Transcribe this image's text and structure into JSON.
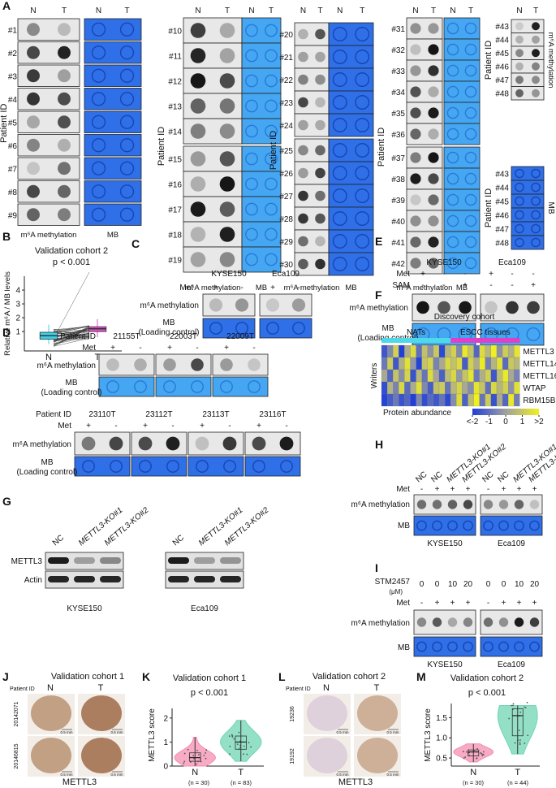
{
  "A": {
    "label": "A",
    "col_n": "N",
    "col_t": "T",
    "patient_id": "Patient ID",
    "m6a": "m⁶A methylation",
    "mb": "MB",
    "groups": [
      [
        "#1",
        "#2",
        "#3",
        "#4",
        "#5",
        "#6",
        "#7",
        "#8",
        "#9"
      ],
      [
        "#10",
        "#11",
        "#12",
        "#13",
        "#14",
        "#15",
        "#16",
        "#17",
        "#18",
        "#19"
      ],
      [
        "#20",
        "#21",
        "#22",
        "#23",
        "#24",
        "#25",
        "#26",
        "#27",
        "#28",
        "#29",
        "#30"
      ],
      [
        "#31",
        "#32",
        "#33",
        "#34",
        "#35",
        "#36",
        "#37",
        "#38",
        "#39",
        "#40",
        "#41",
        "#42"
      ],
      [
        "#43",
        "#44",
        "#45",
        "#46",
        "#47",
        "#48"
      ]
    ]
  },
  "B": {
    "label": "B",
    "type": "box",
    "title": "Validation cohort 2",
    "p": "p < 0.001",
    "ylabel": "Relative m⁶A / MB levels",
    "categories": [
      "N",
      "T"
    ],
    "colors": [
      "#3fd0e8",
      "#e050c8"
    ],
    "ylim": [
      -0.4,
      5
    ],
    "yticks": [
      1,
      2,
      3,
      4
    ],
    "box": [
      {
        "min": 0.1,
        "q1": 0.45,
        "median": 0.7,
        "q3": 0.95,
        "max": 1.5
      },
      {
        "min": 0.6,
        "q1": 1.0,
        "median": 1.2,
        "q3": 1.35,
        "max": 1.9
      }
    ]
  },
  "C": {
    "label": "C",
    "cells": [
      "KYSE150",
      "Eca109"
    ],
    "met_label": "Met",
    "met": [
      "+",
      "-",
      "+",
      "-"
    ],
    "row_m6a": "m⁶A methylation",
    "row_mb": [
      "MB",
      "(Loading control)"
    ]
  },
  "D": {
    "label": "D",
    "patient_id": "Patient ID",
    "met_label": "Met",
    "row_m6a": "m⁶A methylation",
    "row_mb": [
      "MB",
      "(Loading control)"
    ],
    "ids1": [
      "21155T",
      "22003T",
      "22009T"
    ],
    "met1": [
      "+",
      "-",
      "+",
      "-",
      "+",
      "-"
    ],
    "ids2": [
      "23110T",
      "23112T",
      "23113T",
      "23116T"
    ],
    "met2": [
      "+",
      "-",
      "+",
      "-",
      "+",
      "-",
      "+",
      "-"
    ]
  },
  "E": {
    "label": "E",
    "cells": [
      "KYSE150",
      "Eca109"
    ],
    "met_label": "Met",
    "sam_label": "SAM",
    "met": [
      "+",
      "-",
      "-",
      "+",
      "-",
      "-"
    ],
    "sam": [
      "-",
      "-",
      "+",
      "-",
      "-",
      "+"
    ],
    "row_m6a": "m⁶A methylation",
    "row_mb": [
      "MB",
      "(Loading control)"
    ]
  },
  "F": {
    "label": "F",
    "type": "heatmap",
    "title": "Discovery cohort",
    "side_label": "Writers",
    "legend_title": "Protein abundance",
    "groups": [
      {
        "name": "NATs",
        "color": "#4dd9e8"
      },
      {
        "name": "ESCC tissues",
        "color": "#e040c8"
      }
    ],
    "colorscale": [
      "#1f3fd8",
      "#a0a0a0",
      "#f0f020"
    ],
    "legend_ticks": [
      {
        "value": -2,
        "label": "<-2"
      },
      -1,
      0,
      1,
      {
        "value": 2,
        "label": ">2"
      }
    ],
    "rows": [
      {
        "name": "METTL3",
        "values": [
          [
            -1.5,
            -0.5,
            1.2,
            -2,
            0.3,
            1.5,
            -1,
            0.8,
            -0.3,
            1,
            -1.8,
            0.5
          ],
          [
            1.2,
            -0.5,
            1.8,
            0.9,
            -1.2,
            1.5,
            0.6,
            2,
            -0.3,
            1.1,
            0.4,
            1.7
          ]
        ]
      },
      {
        "name": "METTL14",
        "values": [
          [
            -0.8,
            1.1,
            -1.5,
            0.4,
            1.6,
            -0.2,
            -1.9,
            0.9,
            1.3,
            -0.6,
            0.2,
            1.4
          ],
          [
            0.8,
            1.5,
            -1.4,
            1.2,
            0.3,
            1.9,
            -0.7,
            0.5,
            1.6,
            -1.1,
            1.0,
            0.6
          ]
        ]
      },
      {
        "name": "METTL16",
        "values": [
          [
            0.2,
            -1.2,
            0.9,
            -0.4,
            1.3,
            -1.6,
            0.6,
            -0.9,
            1.5,
            0.1,
            -1.3,
            0.7
          ],
          [
            1.4,
            -0.2,
            0.9,
            1.7,
            -0.8,
            0.4,
            1.2,
            -1.5,
            0.7,
            1.8,
            0.2,
            -0.6
          ]
        ]
      },
      {
        "name": "WTAP",
        "values": [
          [
            -1.7,
            0.5,
            -0.6,
            1.4,
            -1.1,
            0.3,
            1.6,
            -0.5,
            -1.4,
            0.8,
            1.1,
            -0.9
          ],
          [
            0.6,
            1.3,
            0.2,
            -0.4,
            1.7,
            0.9,
            -1.0,
            1.4,
            0.5,
            1.2,
            -0.3,
            1.6
          ]
        ]
      },
      {
        "name": "RBM15B",
        "values": [
          [
            -1.9,
            -1.4,
            -0.8,
            -1.6,
            -1.2,
            -2,
            -0.5,
            -1.7,
            -1.1,
            -1.5,
            -0.9,
            -1.8
          ],
          [
            -0.4,
            1.5,
            -1.3,
            0.7,
            2,
            -0.9,
            1.1,
            -1.6,
            0.3,
            -1.2,
            1.8,
            -0.7
          ]
        ]
      }
    ]
  },
  "G": {
    "label": "G",
    "headers": [
      "NC",
      "METTL3-KO#1",
      "METTL3-KO#2",
      "NC",
      "METTL3-KO#1",
      "METTL3-KO#2"
    ],
    "rows": [
      "METTL3",
      "Actin"
    ],
    "cells": [
      "KYSE150",
      "Eca109"
    ]
  },
  "H": {
    "label": "H",
    "headers": [
      "NC",
      "NC",
      "METTL3-KO#1",
      "METTL3-KO#2",
      "NC",
      "NC",
      "METTL3-KO#1",
      "METTL3-KO#2"
    ],
    "met_label": "Met",
    "met": [
      "-",
      "+",
      "+",
      "+",
      "-",
      "+",
      "+",
      "+"
    ],
    "row_m6a": "m⁶A methylation",
    "row_mb": "MB",
    "cells": [
      "KYSE150",
      "Eca109"
    ]
  },
  "I": {
    "label": "I",
    "drug": "STM2457",
    "unit": "(μM)",
    "doses": [
      "0",
      "0",
      "10",
      "20",
      "0",
      "0",
      "10",
      "20"
    ],
    "met_label": "Met",
    "met": [
      "-",
      "+",
      "+",
      "+",
      "-",
      "+",
      "+",
      "+"
    ],
    "row_m6a": "m⁶A methylation",
    "row_mb": "MB",
    "cells": [
      "KYSE150",
      "Eca109"
    ]
  },
  "J": {
    "label": "J",
    "title": "Validation cohort 1",
    "patient_id": "Patient ID",
    "cols": [
      "N",
      "T"
    ],
    "ids": [
      "20142071",
      "20146815"
    ],
    "scale": "0.5 mm",
    "gene": "METTL3"
  },
  "K": {
    "label": "K",
    "type": "violin",
    "title": "Validation cohort 1",
    "p": "p < 0.001",
    "ylabel": "METTL3 score",
    "categories": [
      "N",
      "T"
    ],
    "n_labels": [
      "(n = 30)",
      "(n = 83)"
    ],
    "colors": [
      "#f48fb1",
      "#6fd6b4"
    ],
    "ylim": [
      0,
      2.4
    ],
    "yticks": [
      0,
      1,
      2
    ],
    "box": [
      {
        "min": 0,
        "q1": 0.2,
        "median": 0.35,
        "q3": 0.55,
        "max": 1.2
      },
      {
        "min": 0.2,
        "q1": 0.7,
        "median": 1.0,
        "q3": 1.25,
        "max": 1.9
      }
    ]
  },
  "L": {
    "label": "L",
    "title": "Validation cohort 2",
    "patient_id": "Patient ID",
    "cols": [
      "N",
      "T"
    ],
    "ids": [
      "19236",
      "19192"
    ],
    "scale": "0.5 mm",
    "gene": "METTL3"
  },
  "M": {
    "label": "M",
    "type": "violin",
    "title": "Validation cohort 2",
    "p": "p < 0.001",
    "ylabel": "METTL3 score",
    "categories": [
      "N",
      "T"
    ],
    "n_labels": [
      "(n = 30)",
      "(n = 44)"
    ],
    "colors": [
      "#f48fb1",
      "#6fd6b4"
    ],
    "ylim": [
      0.3,
      1.85
    ],
    "yticks": [
      0.5,
      {
        "value": 1,
        "label": "1.0"
      },
      1.5
    ],
    "box": [
      {
        "min": 0.4,
        "q1": 0.55,
        "median": 0.65,
        "q3": 0.7,
        "max": 0.85
      },
      {
        "min": 0.6,
        "q1": 1.05,
        "median": 1.55,
        "q3": 1.72,
        "max": 1.8
      }
    ]
  }
}
